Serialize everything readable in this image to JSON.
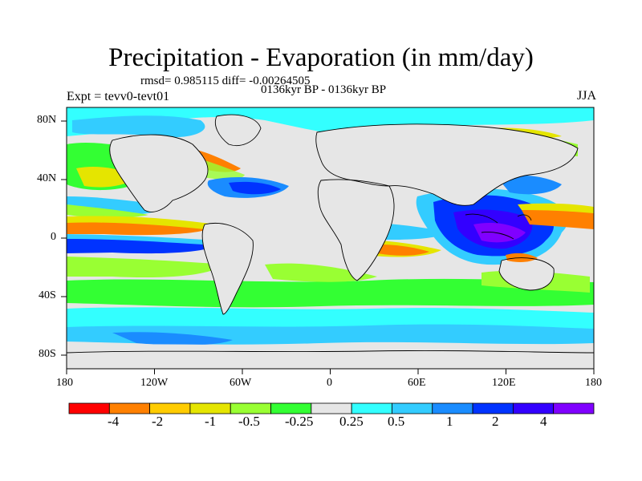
{
  "title": "Precipitation - Evaporation (in mm/day)",
  "stats_line": "rmsd= 0.985115 diff= -0.00264505",
  "period_label": "0136kyr BP - 0136kyr BP",
  "experiment_label": "Expt = tevv0-tevt01",
  "season_label": "JJA",
  "axes": {
    "lon_ticks": [
      "180",
      "120W",
      "60W",
      "0",
      "60E",
      "120E",
      "180"
    ],
    "lat_ticks": [
      "80N",
      "40N",
      "0",
      "40S",
      "80S"
    ]
  },
  "colorbar": {
    "colors": [
      "#ff0000",
      "#ff8000",
      "#ffcc00",
      "#e5e500",
      "#99ff33",
      "#33ff33",
      "#e6e6e6",
      "#33ffff",
      "#33ccff",
      "#1a8cff",
      "#0033ff",
      "#3300ff",
      "#8000ff"
    ],
    "labels": [
      "-4",
      "-2",
      "-1",
      "-0.5",
      "-0.25",
      "0.25",
      "0.5",
      "1",
      "2",
      "4"
    ]
  },
  "colors": {
    "background_field": "#e6e6e6",
    "coastline": "#000000"
  }
}
